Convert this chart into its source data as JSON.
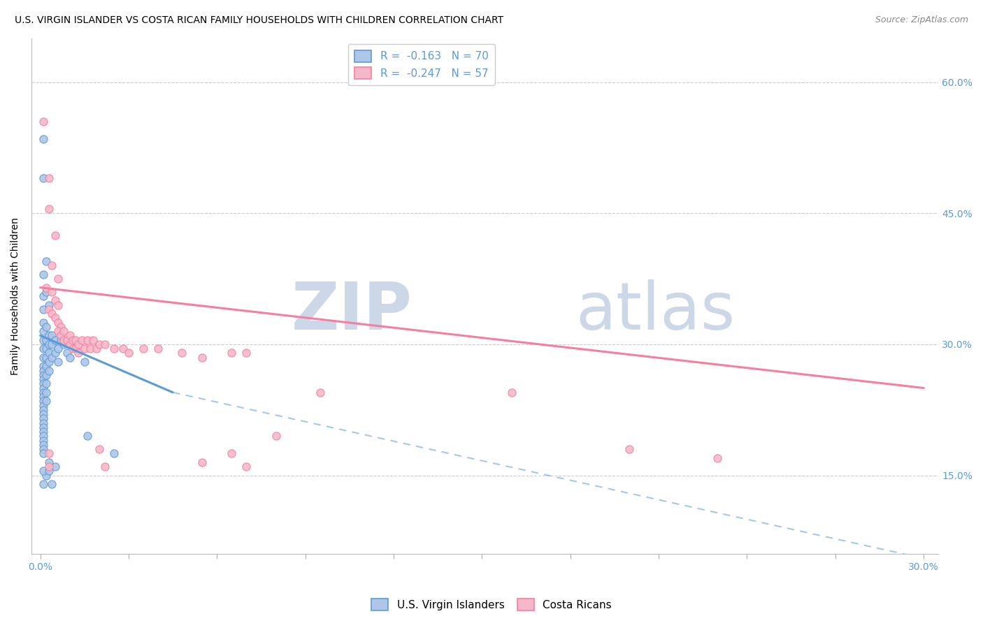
{
  "title": "U.S. VIRGIN ISLANDER VS COSTA RICAN FAMILY HOUSEHOLDS WITH CHILDREN CORRELATION CHART",
  "source": "Source: ZipAtlas.com",
  "ylabel": "Family Households with Children",
  "legend_entries": [
    {
      "label": "R =  -0.163   N = 70",
      "color": "#aec6e8",
      "marker_color": "#5b9bd5"
    },
    {
      "label": "R =  -0.247   N = 57",
      "color": "#f4b8c8",
      "marker_color": "#f47fa0"
    }
  ],
  "legend_labels": [
    "U.S. Virgin Islanders",
    "Costa Ricans"
  ],
  "blue_points": [
    [
      0.001,
      0.38
    ],
    [
      0.001,
      0.355
    ],
    [
      0.001,
      0.34
    ],
    [
      0.001,
      0.325
    ],
    [
      0.001,
      0.315
    ],
    [
      0.001,
      0.305
    ],
    [
      0.001,
      0.295
    ],
    [
      0.001,
      0.285
    ],
    [
      0.001,
      0.275
    ],
    [
      0.001,
      0.27
    ],
    [
      0.001,
      0.265
    ],
    [
      0.001,
      0.26
    ],
    [
      0.001,
      0.255
    ],
    [
      0.001,
      0.25
    ],
    [
      0.001,
      0.245
    ],
    [
      0.001,
      0.24
    ],
    [
      0.001,
      0.235
    ],
    [
      0.001,
      0.23
    ],
    [
      0.001,
      0.225
    ],
    [
      0.001,
      0.22
    ],
    [
      0.001,
      0.215
    ],
    [
      0.001,
      0.21
    ],
    [
      0.001,
      0.205
    ],
    [
      0.001,
      0.2
    ],
    [
      0.001,
      0.195
    ],
    [
      0.001,
      0.19
    ],
    [
      0.001,
      0.185
    ],
    [
      0.001,
      0.18
    ],
    [
      0.001,
      0.175
    ],
    [
      0.002,
      0.32
    ],
    [
      0.002,
      0.305
    ],
    [
      0.002,
      0.295
    ],
    [
      0.002,
      0.285
    ],
    [
      0.002,
      0.275
    ],
    [
      0.002,
      0.265
    ],
    [
      0.002,
      0.255
    ],
    [
      0.002,
      0.245
    ],
    [
      0.002,
      0.235
    ],
    [
      0.003,
      0.31
    ],
    [
      0.003,
      0.3
    ],
    [
      0.003,
      0.29
    ],
    [
      0.003,
      0.28
    ],
    [
      0.003,
      0.27
    ],
    [
      0.004,
      0.31
    ],
    [
      0.004,
      0.3
    ],
    [
      0.004,
      0.285
    ],
    [
      0.005,
      0.305
    ],
    [
      0.005,
      0.29
    ],
    [
      0.006,
      0.295
    ],
    [
      0.006,
      0.28
    ],
    [
      0.007,
      0.305
    ],
    [
      0.008,
      0.3
    ],
    [
      0.009,
      0.29
    ],
    [
      0.01,
      0.285
    ],
    [
      0.012,
      0.295
    ],
    [
      0.015,
      0.28
    ],
    [
      0.002,
      0.395
    ],
    [
      0.001,
      0.535
    ],
    [
      0.003,
      0.345
    ],
    [
      0.002,
      0.36
    ],
    [
      0.001,
      0.49
    ],
    [
      0.025,
      0.175
    ],
    [
      0.002,
      0.15
    ],
    [
      0.016,
      0.195
    ],
    [
      0.001,
      0.155
    ],
    [
      0.005,
      0.16
    ],
    [
      0.001,
      0.14
    ],
    [
      0.003,
      0.155
    ],
    [
      0.004,
      0.14
    ],
    [
      0.003,
      0.165
    ]
  ],
  "pink_points": [
    [
      0.001,
      0.555
    ],
    [
      0.003,
      0.49
    ],
    [
      0.003,
      0.455
    ],
    [
      0.005,
      0.425
    ],
    [
      0.004,
      0.39
    ],
    [
      0.006,
      0.375
    ],
    [
      0.002,
      0.365
    ],
    [
      0.004,
      0.36
    ],
    [
      0.005,
      0.35
    ],
    [
      0.006,
      0.345
    ],
    [
      0.003,
      0.34
    ],
    [
      0.004,
      0.335
    ],
    [
      0.005,
      0.33
    ],
    [
      0.006,
      0.325
    ],
    [
      0.007,
      0.32
    ],
    [
      0.006,
      0.315
    ],
    [
      0.007,
      0.31
    ],
    [
      0.008,
      0.315
    ],
    [
      0.008,
      0.305
    ],
    [
      0.009,
      0.305
    ],
    [
      0.01,
      0.31
    ],
    [
      0.01,
      0.3
    ],
    [
      0.011,
      0.305
    ],
    [
      0.011,
      0.295
    ],
    [
      0.012,
      0.305
    ],
    [
      0.012,
      0.295
    ],
    [
      0.013,
      0.3
    ],
    [
      0.013,
      0.29
    ],
    [
      0.014,
      0.305
    ],
    [
      0.015,
      0.295
    ],
    [
      0.016,
      0.305
    ],
    [
      0.017,
      0.295
    ],
    [
      0.018,
      0.305
    ],
    [
      0.019,
      0.295
    ],
    [
      0.02,
      0.3
    ],
    [
      0.022,
      0.3
    ],
    [
      0.025,
      0.295
    ],
    [
      0.028,
      0.295
    ],
    [
      0.03,
      0.29
    ],
    [
      0.035,
      0.295
    ],
    [
      0.04,
      0.295
    ],
    [
      0.048,
      0.29
    ],
    [
      0.055,
      0.285
    ],
    [
      0.065,
      0.29
    ],
    [
      0.07,
      0.29
    ],
    [
      0.08,
      0.195
    ],
    [
      0.003,
      0.175
    ],
    [
      0.003,
      0.16
    ],
    [
      0.02,
      0.18
    ],
    [
      0.022,
      0.16
    ],
    [
      0.095,
      0.245
    ],
    [
      0.16,
      0.245
    ],
    [
      0.2,
      0.18
    ],
    [
      0.23,
      0.17
    ],
    [
      0.065,
      0.175
    ],
    [
      0.055,
      0.165
    ],
    [
      0.07,
      0.16
    ]
  ],
  "blue_trend_solid": {
    "x_start": 0.0,
    "x_end": 0.045,
    "y_start": 0.31,
    "y_end": 0.245
  },
  "blue_trend_dashed": {
    "x_start": 0.045,
    "x_end": 0.3,
    "y_start": 0.245,
    "y_end": 0.055
  },
  "pink_trend": {
    "x_start": 0.0,
    "x_end": 0.3,
    "y_start": 0.365,
    "y_end": 0.25
  },
  "ylim": [
    0.06,
    0.65
  ],
  "xlim": [
    -0.003,
    0.305
  ],
  "y_tick_vals": [
    0.15,
    0.3,
    0.45,
    0.6
  ],
  "x_tick_count": 11,
  "title_fontsize": 10,
  "source_fontsize": 9,
  "tick_fontsize": 10,
  "label_fontsize": 10,
  "blue_color": "#5b9bd5",
  "pink_color": "#f47fa0",
  "blue_marker_face": "#aec6e8",
  "pink_marker_face": "#f4b8c8",
  "grid_color": "#cccccc",
  "axis_label_color": "#5b9bd5",
  "watermark_color": "#ccd8e8"
}
